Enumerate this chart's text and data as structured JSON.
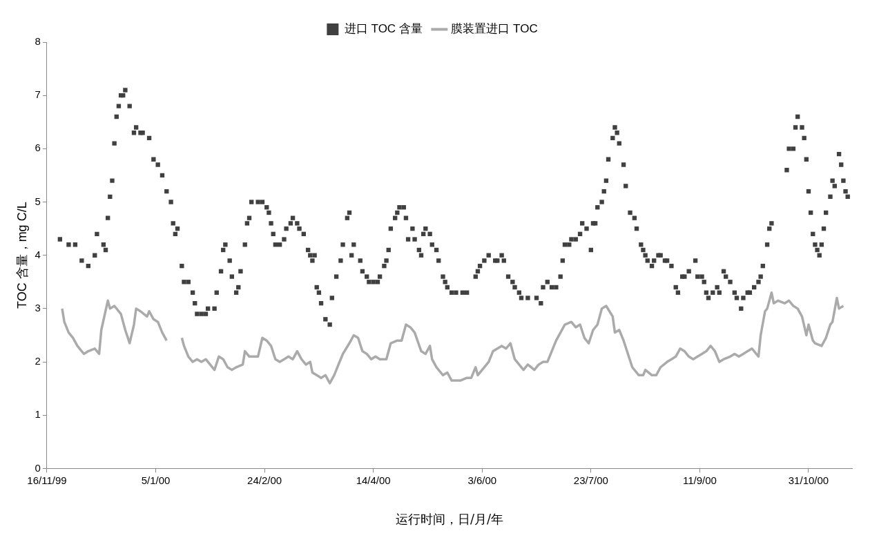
{
  "chart_data": {
    "type": "scatter",
    "xlabel": "运行时间，日/月/年",
    "ylabel": "TOC 含量，mg C/L",
    "xlim": [
      "1999-11-16",
      "2000-11-20"
    ],
    "xticks": [
      {
        "value": "1999-11-16",
        "label": "16/11/99"
      },
      {
        "value": "2000-01-05",
        "label": "5/1/00"
      },
      {
        "value": "2000-02-24",
        "label": "24/2/00"
      },
      {
        "value": "2000-04-14",
        "label": "14/4/00"
      },
      {
        "value": "2000-06-03",
        "label": "3/6/00"
      },
      {
        "value": "2000-07-23",
        "label": "23/7/00"
      },
      {
        "value": "2000-09-11",
        "label": "11/9/00"
      },
      {
        "value": "2000-10-31",
        "label": "31/10/00"
      }
    ],
    "ylim": [
      0,
      8
    ],
    "yticks": [
      0,
      1,
      2,
      3,
      4,
      5,
      6,
      7,
      8
    ],
    "grid": false,
    "legend": "top",
    "series": [
      {
        "name": "进口 TOC 含量",
        "marker": "square",
        "color": "#404040",
        "x": [
          "1999-11-22",
          "1999-11-26",
          "1999-11-29",
          "1999-12-02",
          "1999-12-05",
          "1999-12-08",
          "1999-12-09",
          "1999-12-12",
          "1999-12-13",
          "1999-12-14",
          "1999-12-15",
          "1999-12-16",
          "1999-12-17",
          "1999-12-18",
          "1999-12-19",
          "1999-12-20",
          "1999-12-21",
          "1999-12-22",
          "1999-12-24",
          "1999-12-26",
          "1999-12-27",
          "1999-12-29",
          "1999-12-30",
          "2000-01-02",
          "2000-01-04",
          "2000-01-06",
          "2000-01-08",
          "2000-01-10",
          "2000-01-12",
          "2000-01-13",
          "2000-01-14",
          "2000-01-15",
          "2000-01-17",
          "2000-01-18",
          "2000-01-20",
          "2000-01-22",
          "2000-01-23",
          "2000-01-24",
          "2000-01-26",
          "2000-01-28",
          "2000-01-29",
          "2000-02-01",
          "2000-02-02",
          "2000-02-04",
          "2000-02-05",
          "2000-02-06",
          "2000-02-08",
          "2000-02-09",
          "2000-02-11",
          "2000-02-12",
          "2000-02-13",
          "2000-02-15",
          "2000-02-16",
          "2000-02-17",
          "2000-02-18",
          "2000-02-21",
          "2000-02-23",
          "2000-02-25",
          "2000-02-26",
          "2000-02-27",
          "2000-02-28",
          "2000-02-29",
          "2000-03-02",
          "2000-03-04",
          "2000-03-05",
          "2000-03-07",
          "2000-03-08",
          "2000-03-10",
          "2000-03-11",
          "2000-03-13",
          "2000-03-15",
          "2000-03-16",
          "2000-03-17",
          "2000-03-18",
          "2000-03-19",
          "2000-03-20",
          "2000-03-21",
          "2000-03-23",
          "2000-03-25",
          "2000-03-26",
          "2000-03-28",
          "2000-03-30",
          "2000-03-31",
          "2000-04-02",
          "2000-04-03",
          "2000-04-04",
          "2000-04-05",
          "2000-04-08",
          "2000-04-09",
          "2000-04-11",
          "2000-04-12",
          "2000-04-14",
          "2000-04-16",
          "2000-04-17",
          "2000-04-19",
          "2000-04-20",
          "2000-04-21",
          "2000-04-22",
          "2000-04-24",
          "2000-04-25",
          "2000-04-26",
          "2000-04-28",
          "2000-04-29",
          "2000-04-30",
          "2000-05-02",
          "2000-05-03",
          "2000-05-05",
          "2000-05-06",
          "2000-05-07",
          "2000-05-08",
          "2000-05-10",
          "2000-05-11",
          "2000-05-13",
          "2000-05-14",
          "2000-05-16",
          "2000-05-17",
          "2000-05-18",
          "2000-05-20",
          "2000-05-22",
          "2000-05-25",
          "2000-05-27",
          "2000-05-31",
          "2000-06-01",
          "2000-06-02",
          "2000-06-04",
          "2000-06-06",
          "2000-06-09",
          "2000-06-10",
          "2000-06-12",
          "2000-06-13",
          "2000-06-15",
          "2000-06-17",
          "2000-06-18",
          "2000-06-20",
          "2000-06-21",
          "2000-06-24",
          "2000-06-28",
          "2000-06-30",
          "2000-07-01",
          "2000-07-03",
          "2000-07-05",
          "2000-07-07",
          "2000-07-09",
          "2000-07-10",
          "2000-07-11",
          "2000-07-13",
          "2000-07-14",
          "2000-07-16",
          "2000-07-18",
          "2000-07-19",
          "2000-07-21",
          "2000-07-23",
          "2000-07-24",
          "2000-07-25",
          "2000-07-26",
          "2000-07-28",
          "2000-07-29",
          "2000-07-30",
          "2000-07-31",
          "2000-08-02",
          "2000-08-03",
          "2000-08-04",
          "2000-08-05",
          "2000-08-07",
          "2000-08-08",
          "2000-08-10",
          "2000-08-12",
          "2000-08-13",
          "2000-08-15",
          "2000-08-16",
          "2000-08-17",
          "2000-08-18",
          "2000-08-20",
          "2000-08-21",
          "2000-08-23",
          "2000-08-24",
          "2000-08-26",
          "2000-08-27",
          "2000-08-29",
          "2000-08-31",
          "2000-09-01",
          "2000-09-03",
          "2000-09-04",
          "2000-09-06",
          "2000-09-09",
          "2000-09-10",
          "2000-09-12",
          "2000-09-13",
          "2000-09-14",
          "2000-09-15",
          "2000-09-17",
          "2000-09-19",
          "2000-09-20",
          "2000-09-22",
          "2000-09-23",
          "2000-09-25",
          "2000-09-27",
          "2000-09-28",
          "2000-09-30",
          "2000-10-01",
          "2000-10-03",
          "2000-10-04",
          "2000-10-06",
          "2000-10-08",
          "2000-10-09",
          "2000-10-10",
          "2000-10-12",
          "2000-10-13",
          "2000-10-14",
          "2000-10-21",
          "2000-10-22",
          "2000-10-24",
          "2000-10-25",
          "2000-10-26",
          "2000-10-28",
          "2000-10-29",
          "2000-10-30",
          "2000-10-31",
          "2000-11-01",
          "2000-11-02",
          "2000-11-03",
          "2000-11-04",
          "2000-11-05",
          "2000-11-06",
          "2000-11-07",
          "2000-11-08",
          "2000-11-10",
          "2000-11-11",
          "2000-11-12",
          "2000-11-14",
          "2000-11-15",
          "2000-11-16",
          "2000-11-17",
          "2000-11-18"
        ],
        "values": [
          4.3,
          4.2,
          4.2,
          3.9,
          3.8,
          4.0,
          4.4,
          4.2,
          4.1,
          4.7,
          5.1,
          5.4,
          6.1,
          6.6,
          6.8,
          7.0,
          7.0,
          7.1,
          6.8,
          6.3,
          6.4,
          6.3,
          6.3,
          6.2,
          5.8,
          5.7,
          5.5,
          5.2,
          5.0,
          4.6,
          4.4,
          4.5,
          3.8,
          3.5,
          3.5,
          3.3,
          3.1,
          2.9,
          2.9,
          2.9,
          3.0,
          3.0,
          3.3,
          3.7,
          4.1,
          4.2,
          3.9,
          3.6,
          3.3,
          3.4,
          3.7,
          4.2,
          4.6,
          4.7,
          5.0,
          5.0,
          5.0,
          4.9,
          4.8,
          4.6,
          4.4,
          4.2,
          4.2,
          4.3,
          4.5,
          4.6,
          4.7,
          4.6,
          4.5,
          4.4,
          4.1,
          4.0,
          3.9,
          4.0,
          3.4,
          3.3,
          3.1,
          2.8,
          2.7,
          3.2,
          3.6,
          3.9,
          4.2,
          4.7,
          4.8,
          4.0,
          4.2,
          3.9,
          3.7,
          3.6,
          3.5,
          3.5,
          3.5,
          3.6,
          3.8,
          3.9,
          4.1,
          4.5,
          4.7,
          4.8,
          4.9,
          4.9,
          4.7,
          4.3,
          4.5,
          4.3,
          4.1,
          4.0,
          4.4,
          4.5,
          4.4,
          4.2,
          4.1,
          3.9,
          3.6,
          3.5,
          3.4,
          3.3,
          3.3,
          3.3,
          3.3,
          3.6,
          3.7,
          3.8,
          3.9,
          4.0,
          3.9,
          3.9,
          4.0,
          3.9,
          3.6,
          3.5,
          3.4,
          3.3,
          3.2,
          3.2,
          3.2,
          3.1,
          3.4,
          3.5,
          3.4,
          3.4,
          3.6,
          3.9,
          4.2,
          4.2,
          4.3,
          4.3,
          4.4,
          4.6,
          4.5,
          4.1,
          4.6,
          4.6,
          4.9,
          5.0,
          5.2,
          5.4,
          5.8,
          6.2,
          6.4,
          6.3,
          6.1,
          5.7,
          5.3,
          4.8,
          4.7,
          4.5,
          4.2,
          4.1,
          4.0,
          3.9,
          3.8,
          3.9,
          4.0,
          4.0,
          3.9,
          3.9,
          3.8,
          3.4,
          3.3,
          3.6,
          3.6,
          3.7,
          3.9,
          3.6,
          3.6,
          3.5,
          3.3,
          3.2,
          3.3,
          3.4,
          3.3,
          3.7,
          3.6,
          3.5,
          3.3,
          3.2,
          3.0,
          3.2,
          3.3,
          3.3,
          3.4,
          3.5,
          3.6,
          3.8,
          4.2,
          4.5,
          4.6,
          5.6,
          6.0,
          6.0,
          6.4,
          6.6,
          6.4,
          6.2,
          5.8,
          5.2,
          4.8,
          4.4,
          4.2,
          4.1,
          4.0,
          4.2,
          4.5,
          4.8,
          5.1,
          5.4,
          5.3,
          5.9,
          5.7,
          5.4,
          5.2,
          5.1
        ]
      },
      {
        "name": "膜装置进口 TOC",
        "type": "line",
        "marker": "none",
        "line_style": "solid",
        "color": "#aaaaaa",
        "x": [
          "1999-11-23",
          "1999-11-24",
          "1999-11-26",
          "1999-11-28",
          "1999-11-30",
          "1999-12-03",
          "1999-12-05",
          "1999-12-08",
          "1999-12-10",
          "1999-12-11",
          "1999-12-14",
          "1999-12-15",
          "1999-12-17",
          "1999-12-20",
          "1999-12-22",
          "1999-12-24",
          "1999-12-26",
          "1999-12-27",
          "1999-12-29",
          "2000-01-01",
          "2000-01-02",
          "2000-01-04",
          "2000-01-06",
          "2000-01-08",
          "2000-01-10",
          "2000-01-13",
          "2000-01-17",
          "2000-01-18",
          "2000-01-20",
          "2000-01-22",
          "2000-01-24",
          "2000-01-26",
          "2000-01-28",
          "2000-01-30",
          "2000-02-01",
          "2000-02-03",
          "2000-02-05",
          "2000-02-07",
          "2000-02-09",
          "2000-02-11",
          "2000-02-14",
          "2000-02-15",
          "2000-02-17",
          "2000-02-19",
          "2000-02-21",
          "2000-02-23",
          "2000-02-25",
          "2000-02-27",
          "2000-02-29",
          "2000-03-02",
          "2000-03-04",
          "2000-03-06",
          "2000-03-08",
          "2000-03-10",
          "2000-03-12",
          "2000-03-14",
          "2000-03-16",
          "2000-03-17",
          "2000-03-19",
          "2000-03-21",
          "2000-03-23",
          "2000-03-25",
          "2000-03-27",
          "2000-03-29",
          "2000-03-31",
          "2000-04-03",
          "2000-04-05",
          "2000-04-07",
          "2000-04-09",
          "2000-04-11",
          "2000-04-13",
          "2000-04-15",
          "2000-04-17",
          "2000-04-20",
          "2000-04-22",
          "2000-04-25",
          "2000-04-27",
          "2000-04-29",
          "2000-05-01",
          "2000-05-03",
          "2000-05-06",
          "2000-05-08",
          "2000-05-10",
          "2000-05-11",
          "2000-05-13",
          "2000-05-16",
          "2000-05-18",
          "2000-05-20",
          "2000-05-22",
          "2000-05-24",
          "2000-05-27",
          "2000-05-29",
          "2000-05-31",
          "2000-06-01",
          "2000-06-03",
          "2000-06-06",
          "2000-06-08",
          "2000-06-10",
          "2000-06-12",
          "2000-06-14",
          "2000-06-16",
          "2000-06-18",
          "2000-06-20",
          "2000-06-22",
          "2000-06-24",
          "2000-06-27",
          "2000-06-29",
          "2000-07-01",
          "2000-07-03",
          "2000-07-05",
          "2000-07-07",
          "2000-07-09",
          "2000-07-11",
          "2000-07-14",
          "2000-07-16",
          "2000-07-18",
          "2000-07-20",
          "2000-07-22",
          "2000-07-24",
          "2000-07-26",
          "2000-07-28",
          "2000-07-30",
          "2000-08-02",
          "2000-08-03",
          "2000-08-05",
          "2000-08-07",
          "2000-08-09",
          "2000-08-11",
          "2000-08-14",
          "2000-08-16",
          "2000-08-17",
          "2000-08-20",
          "2000-08-22",
          "2000-08-24",
          "2000-08-27",
          "2000-08-29",
          "2000-08-31",
          "2000-09-02",
          "2000-09-04",
          "2000-09-06",
          "2000-09-08",
          "2000-09-10",
          "2000-09-12",
          "2000-09-14",
          "2000-09-16",
          "2000-09-18",
          "2000-09-20",
          "2000-09-22",
          "2000-09-25",
          "2000-09-27",
          "2000-09-29",
          "2000-10-01",
          "2000-10-03",
          "2000-10-05",
          "2000-10-08",
          "2000-10-09",
          "2000-10-11",
          "2000-10-12",
          "2000-10-14",
          "2000-10-15",
          "2000-10-17",
          "2000-10-20",
          "2000-10-22",
          "2000-10-24",
          "2000-10-26",
          "2000-10-28",
          "2000-10-30",
          "2000-10-31",
          "2000-11-02",
          "2000-11-03",
          "2000-11-06",
          "2000-11-08",
          "2000-11-10",
          "2000-11-11",
          "2000-11-13",
          "2000-11-14",
          "2000-11-16"
        ],
        "values": [
          3.0,
          2.75,
          2.55,
          2.45,
          2.3,
          2.15,
          2.2,
          2.25,
          2.15,
          2.6,
          3.15,
          3.0,
          3.05,
          2.9,
          2.6,
          2.35,
          2.7,
          3.0,
          2.95,
          2.85,
          2.95,
          2.8,
          2.75,
          2.55,
          2.4,
          null,
          2.45,
          2.3,
          2.1,
          2.0,
          2.05,
          2.0,
          2.05,
          1.95,
          1.85,
          2.1,
          2.05,
          1.9,
          1.85,
          1.9,
          1.95,
          2.2,
          2.1,
          2.1,
          2.1,
          2.45,
          2.4,
          2.3,
          2.05,
          2.0,
          2.05,
          2.1,
          2.05,
          2.2,
          2.05,
          1.95,
          2.0,
          1.8,
          1.75,
          1.7,
          1.75,
          1.6,
          1.75,
          1.95,
          2.15,
          2.35,
          2.5,
          2.45,
          2.2,
          2.15,
          2.05,
          2.1,
          2.05,
          2.05,
          2.35,
          2.4,
          2.4,
          2.7,
          2.65,
          2.55,
          2.2,
          2.15,
          2.3,
          2.05,
          1.9,
          1.75,
          1.8,
          1.65,
          1.65,
          1.65,
          1.7,
          1.7,
          1.9,
          1.75,
          1.85,
          2.0,
          2.2,
          2.25,
          2.3,
          2.25,
          2.35,
          2.05,
          1.95,
          1.85,
          1.95,
          1.85,
          1.95,
          2.0,
          2.0,
          2.2,
          2.4,
          2.55,
          2.7,
          2.75,
          2.65,
          2.7,
          2.45,
          2.35,
          2.6,
          2.7,
          3.0,
          3.05,
          2.85,
          2.55,
          2.6,
          2.4,
          2.15,
          1.9,
          1.75,
          1.75,
          1.85,
          1.75,
          1.75,
          1.9,
          2.0,
          2.05,
          2.1,
          2.25,
          2.2,
          2.1,
          2.05,
          2.1,
          2.15,
          2.2,
          2.3,
          2.2,
          2.0,
          2.05,
          2.1,
          2.15,
          2.1,
          2.15,
          2.2,
          2.25,
          2.1,
          2.5,
          2.95,
          3.0,
          3.3,
          3.1,
          3.15,
          3.1,
          3.15,
          3.05,
          3.0,
          2.85,
          2.5,
          2.7,
          2.4,
          2.35,
          2.3,
          2.45,
          2.7,
          2.75,
          3.2,
          3.0,
          3.05
        ]
      }
    ]
  }
}
